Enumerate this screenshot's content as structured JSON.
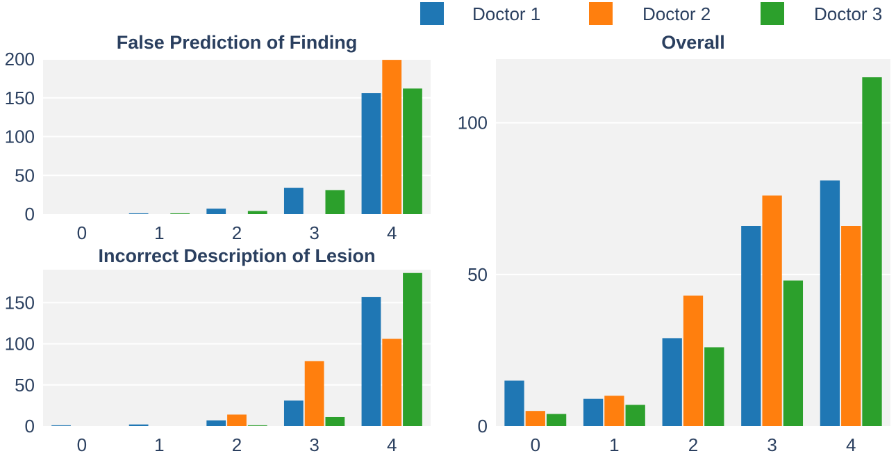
{
  "legend": [
    {
      "name": "Doctor 1",
      "color": "#1f77b4"
    },
    {
      "name": "Doctor 2",
      "color": "#ff7f0e"
    },
    {
      "name": "Doctor 3",
      "color": "#2ca02c"
    }
  ],
  "chart_data": [
    {
      "type": "bar",
      "title": "False Prediction of Finding",
      "categories": [
        "0",
        "1",
        "2",
        "3",
        "4"
      ],
      "series": [
        {
          "name": "Doctor 1",
          "values": [
            0,
            1,
            7,
            34,
            156
          ]
        },
        {
          "name": "Doctor 2",
          "values": [
            0,
            0,
            0,
            0,
            199
          ]
        },
        {
          "name": "Doctor 3",
          "values": [
            0,
            1,
            4,
            31,
            162
          ]
        }
      ],
      "xlabel": "",
      "ylabel": "",
      "ylim": [
        0,
        200
      ],
      "yticks": [
        "0",
        "50",
        "100",
        "150",
        "200"
      ],
      "grid": true
    },
    {
      "type": "bar",
      "title": "Incorrect Description of Lesion",
      "categories": [
        "0",
        "1",
        "2",
        "3",
        "4"
      ],
      "series": [
        {
          "name": "Doctor 1",
          "values": [
            1,
            2,
            7,
            31,
            157
          ]
        },
        {
          "name": "Doctor 2",
          "values": [
            0,
            0,
            14,
            79,
            106
          ]
        },
        {
          "name": "Doctor 3",
          "values": [
            0,
            0,
            1,
            11,
            186
          ]
        }
      ],
      "xlabel": "",
      "ylabel": "",
      "ylim": [
        0,
        190
      ],
      "yticks": [
        "0",
        "50",
        "100",
        "150"
      ],
      "grid": true
    },
    {
      "type": "bar",
      "title": "Overall",
      "categories": [
        "0",
        "1",
        "2",
        "3",
        "4"
      ],
      "series": [
        {
          "name": "Doctor 1",
          "values": [
            15,
            9,
            29,
            66,
            81
          ]
        },
        {
          "name": "Doctor 2",
          "values": [
            5,
            10,
            43,
            76,
            66
          ]
        },
        {
          "name": "Doctor 3",
          "values": [
            4,
            7,
            26,
            48,
            115
          ]
        }
      ],
      "xlabel": "",
      "ylabel": "",
      "ylim": [
        0,
        121
      ],
      "yticks": [
        "0",
        "50",
        "100"
      ],
      "grid": true
    }
  ]
}
